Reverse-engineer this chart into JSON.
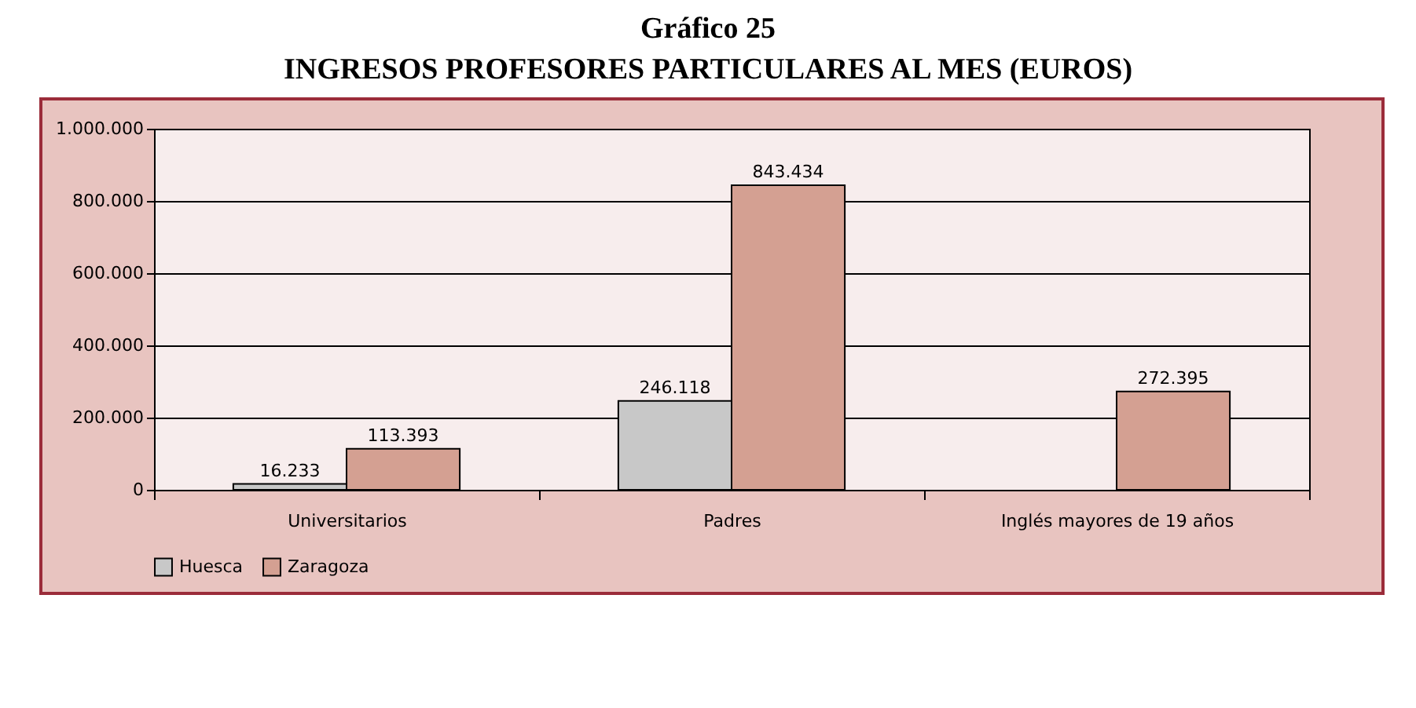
{
  "chart_data": {
    "type": "bar",
    "title": "Gráfico 25",
    "subtitle": "INGRESOS PROFESORES PARTICULARES AL MES (EUROS)",
    "categories": [
      "Universitarios",
      "Padres",
      "Inglés mayores de 19 años"
    ],
    "series": [
      {
        "name": "Huesca",
        "color": "#c8c8c8",
        "values": [
          16233,
          246118,
          null
        ],
        "value_labels": [
          "16.233",
          "246.118",
          null
        ]
      },
      {
        "name": "Zaragoza",
        "color": "#d4a092",
        "values": [
          113393,
          843434,
          272395
        ],
        "value_labels": [
          "113.393",
          "843.434",
          "272.395"
        ]
      }
    ],
    "ylim": [
      0,
      1000000
    ],
    "yticks": [
      {
        "value": 0,
        "label": "0"
      },
      {
        "value": 200000,
        "label": "200.000"
      },
      {
        "value": 400000,
        "label": "400.000"
      },
      {
        "value": 600000,
        "label": "600.000"
      },
      {
        "value": 800000,
        "label": "800.000"
      },
      {
        "value": 1000000,
        "label": "1.000.000"
      }
    ],
    "grid": "y",
    "legend": "bottom"
  }
}
